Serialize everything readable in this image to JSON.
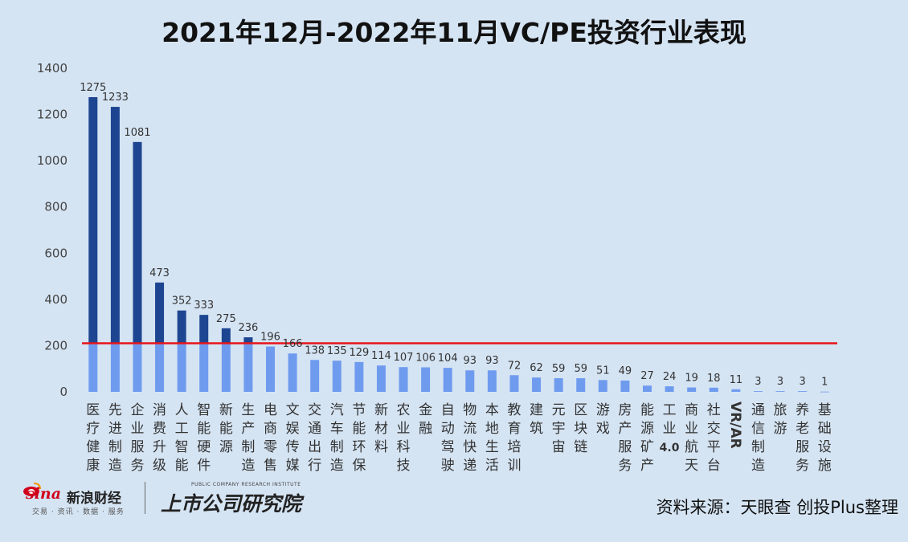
{
  "chart_data": {
    "type": "bar",
    "title": "2021年12月-2022年11月VC/PE投资行业表现",
    "ylim": [
      0,
      1400
    ],
    "yticks": [
      0,
      200,
      400,
      600,
      800,
      1000,
      1200,
      1400
    ],
    "categories": [
      "医疗健康",
      "先进制造",
      "企业服务",
      "消费升级",
      "人工智能",
      "智能硬件",
      "新能源",
      "生产制造",
      "电商零售",
      "文娱传媒",
      "交通出行",
      "汽车制造",
      "节能环保",
      "新材料",
      "农业科技",
      "金融",
      "自动驾驶",
      "物流快递",
      "本地生活",
      "教育培训",
      "建筑",
      "元宇宙",
      "区块链",
      "游戏",
      "房产服务",
      "能源矿产",
      "工业4.0",
      "商业航天",
      "社交平台",
      "VR/AR",
      "通信制造",
      "旅游",
      "养老服务",
      "基础设施"
    ],
    "values": [
      1275,
      1233,
      1081,
      473,
      352,
      333,
      275,
      236,
      196,
      166,
      138,
      135,
      129,
      114,
      107,
      106,
      104,
      93,
      93,
      72,
      62,
      59,
      59,
      51,
      49,
      27,
      24,
      19,
      18,
      11,
      3,
      3,
      3,
      1
    ],
    "reference_line": 210,
    "legend": "none",
    "grid": false,
    "colors": {
      "above_line": "#1d4591",
      "below_line": "#6f9bef",
      "reference_line": "#e8141a",
      "background": "#d5e4f3"
    }
  },
  "footer": {
    "brand_wordmark": "sina",
    "brand_name": "新浪财经",
    "brand_sub": "交易 · 资讯 · 数据 · 服务",
    "institute_en": "PUBLIC COMPANY RESEARCH INSTITUTE",
    "institute_cn": "上市公司研究院",
    "source": "资料来源：天眼查 创投Plus整理"
  }
}
